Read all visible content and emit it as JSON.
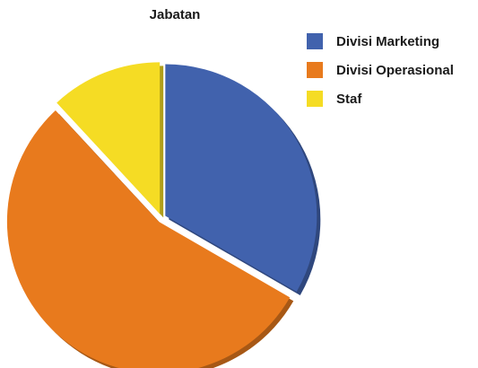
{
  "chart_data": {
    "type": "pie",
    "title": "Jabatan",
    "categories": [
      "Divisi Marketing",
      "Divisi Operasional",
      "Staf"
    ],
    "values": [
      14,
      23,
      5
    ],
    "colors": [
      "#4162ad",
      "#e87a1d",
      "#f5dc24"
    ],
    "legend_position": "right"
  }
}
